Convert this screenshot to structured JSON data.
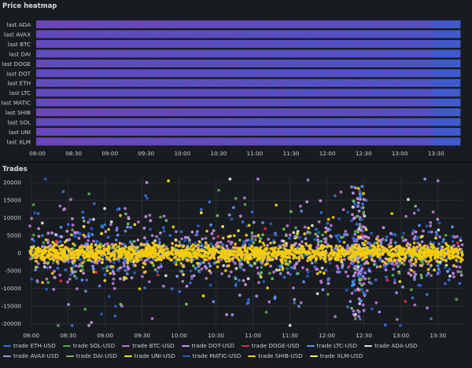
{
  "panels": {
    "heatmap_title": "Price heatmap",
    "trades_title": "Trades"
  },
  "chart_data": [
    {
      "type": "heatmap",
      "title": "Price heatmap",
      "rows": [
        "last ADA",
        "last AVAX",
        "last BTC",
        "last DAI",
        "last DOGE",
        "last DOT",
        "last ETH",
        "last LTC",
        "last MATIC",
        "last SHIB",
        "last SOL",
        "last UNI",
        "last XLM"
      ],
      "x_ticks": [
        "08:00",
        "08:30",
        "09:00",
        "09:30",
        "10:00",
        "10:30",
        "11:00",
        "11:30",
        "12:00",
        "12:30",
        "13:00",
        "13:30"
      ],
      "x_range": [
        "07:59",
        "13:50"
      ],
      "colors": {
        "low": "#7a3fb0",
        "high": "#3d5bd0"
      }
    },
    {
      "type": "scatter",
      "title": "Trades",
      "y_ticks": [
        "20000",
        "15000",
        "10000",
        "5000",
        "0",
        "-5000",
        "-10000",
        "-15000",
        "-20000"
      ],
      "ylim": [
        -21000,
        21500
      ],
      "x_ticks": [
        "08:00",
        "08:30",
        "09:00",
        "09:30",
        "10:00",
        "10:30",
        "11:00",
        "11:30",
        "12:00",
        "12:30",
        "13:00",
        "13:30"
      ],
      "x_range": [
        "07:59",
        "13:50"
      ],
      "grid": true,
      "legend": "bottom",
      "series": [
        {
          "name": "trade ETH-USD",
          "color": "#3274d9"
        },
        {
          "name": "trade SOL-USD",
          "color": "#56a64b"
        },
        {
          "name": "trade BTC-USD",
          "color": "#b877d9"
        },
        {
          "name": "trade DOT-USD",
          "color": "#ca95e5"
        },
        {
          "name": "trade DOGE-USD",
          "color": "#e02f44"
        },
        {
          "name": "trade LTC-USD",
          "color": "#5794f2"
        },
        {
          "name": "trade ADA-USD",
          "color": "#e0e0e0"
        },
        {
          "name": "trade AVAX-USD",
          "color": "#8f9cf5"
        },
        {
          "name": "trade DAI-USD",
          "color": "#73bf69"
        },
        {
          "name": "trade UNI-USD",
          "color": "#fade2a"
        },
        {
          "name": "trade MATIC-USD",
          "color": "#1f60c4"
        },
        {
          "name": "trade SHIB-USD",
          "color": "#f2cc0c"
        },
        {
          "name": "trade XLM-USD",
          "color": "#ffee52"
        }
      ]
    }
  ]
}
